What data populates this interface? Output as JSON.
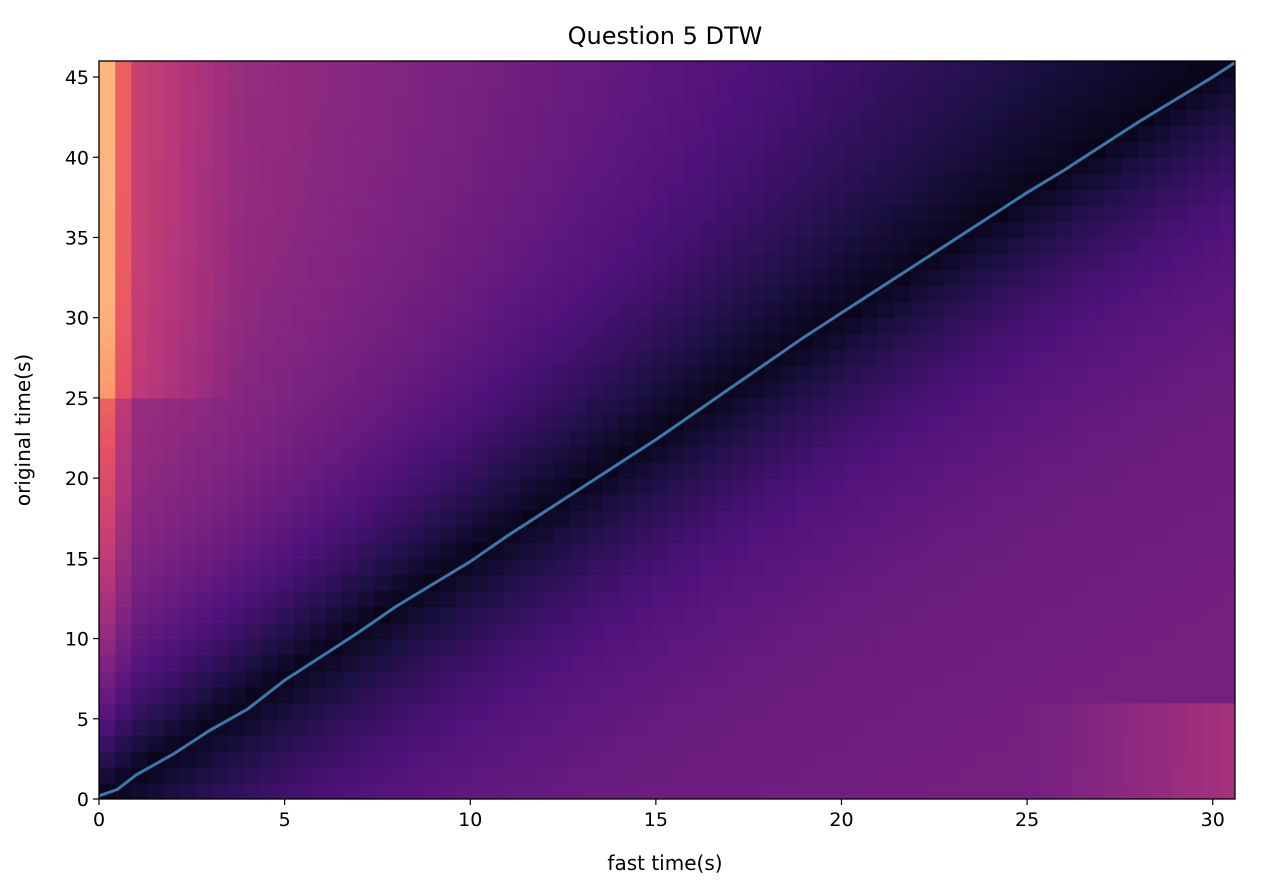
{
  "chart_data": {
    "type": "heatmap",
    "title": "Question 5 DTW",
    "xlabel": "fast time(s)",
    "ylabel": "original time(s)",
    "xlim": [
      0,
      30.6
    ],
    "ylim": [
      0,
      46
    ],
    "x_ticks": [
      0,
      5,
      10,
      15,
      20,
      25,
      30
    ],
    "y_ticks": [
      0,
      5,
      10,
      15,
      20,
      25,
      30,
      35,
      40,
      45
    ],
    "x_tick_labels": [
      "0",
      "5",
      "10",
      "15",
      "20",
      "25",
      "30"
    ],
    "y_tick_labels": [
      "0",
      "5",
      "10",
      "15",
      "20",
      "25",
      "30",
      "35",
      "40",
      "45"
    ],
    "colormap": "magma",
    "grid": false,
    "legend": "none",
    "heatmap_description_grid": {
      "x": [
        0,
        0.5,
        1,
        2,
        3,
        4,
        6,
        8,
        10,
        12,
        14,
        16,
        18,
        20,
        22,
        24,
        26,
        28,
        30.6
      ],
      "y": [
        0,
        5,
        10,
        15,
        20,
        25,
        30,
        35,
        40,
        46
      ]
    },
    "path_series": {
      "name": "",
      "color": "#3a79ad",
      "x": [
        0,
        0.5,
        1,
        2,
        3,
        4,
        5,
        6,
        7,
        8,
        9,
        10,
        11,
        12,
        13,
        14,
        15,
        16,
        17,
        18,
        19,
        20,
        21,
        22,
        23,
        24,
        25,
        26,
        27,
        28,
        29,
        30,
        30.6
      ],
      "y": [
        0.2,
        0.6,
        1.5,
        2.8,
        4.3,
        5.6,
        7.4,
        8.9,
        10.4,
        12.0,
        13.4,
        14.8,
        16.4,
        17.9,
        19.4,
        20.9,
        22.4,
        24.0,
        25.6,
        27.2,
        28.8,
        30.3,
        31.8,
        33.3,
        34.8,
        36.3,
        37.8,
        39.2,
        40.7,
        42.2,
        43.6,
        45.0,
        45.9
      ]
    }
  }
}
